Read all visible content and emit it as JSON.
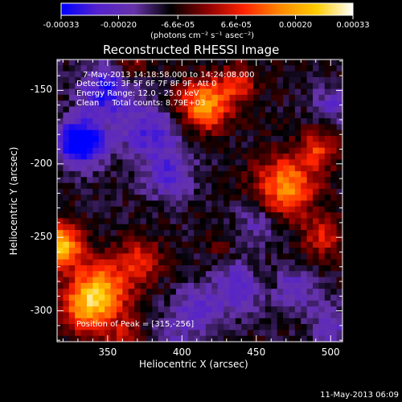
{
  "colorbar": {
    "ticks": [
      "-0.00033",
      "-0.00020",
      "-6.6e-05",
      "6.6e-05",
      "0.00020",
      "0.00033"
    ],
    "tick_values": [
      -0.00033,
      -0.0002,
      -6.6e-05,
      6.6e-05,
      0.0002,
      0.00033
    ],
    "units_label": "(photons cm⁻² s⁻¹ asec⁻²)",
    "colors": [
      "#0000ff",
      "#5522cc",
      "#6633aa",
      "#000000",
      "#8b0000",
      "#ff2200",
      "#ff8800",
      "#ffcc00",
      "#ffffff"
    ]
  },
  "chart_data": {
    "type": "heatmap",
    "title": "Reconstructed RHESSI Image",
    "xlabel": "Heliocentric X (arcsec)",
    "ylabel": "Heliocentric Y (arcsec)",
    "xlim": [
      316,
      508
    ],
    "ylim": [
      -321,
      -129
    ],
    "xticks": [
      "350",
      "400",
      "450",
      "500"
    ],
    "xtick_values": [
      350,
      400,
      450,
      500
    ],
    "yticks": [
      "-150",
      "-200",
      "-250",
      "-300"
    ],
    "ytick_values": [
      -150,
      -200,
      -250,
      -300
    ],
    "zlim": [
      -0.00033,
      0.00033
    ],
    "peak": [
      315,
      -256
    ],
    "sources": [
      {
        "x": 318,
        "y": -256,
        "amp": 0.00033,
        "w": 10
      },
      {
        "x": 345,
        "y": -286,
        "amp": 0.00026,
        "w": 14
      },
      {
        "x": 335,
        "y": -300,
        "amp": 0.00018,
        "w": 12
      },
      {
        "x": 372,
        "y": -266,
        "amp": 0.00016,
        "w": 10
      },
      {
        "x": 362,
        "y": -318,
        "amp": 0.00012,
        "w": 8
      },
      {
        "x": 415,
        "y": -160,
        "amp": 0.00028,
        "w": 12
      },
      {
        "x": 438,
        "y": -145,
        "amp": 0.00014,
        "w": 9
      },
      {
        "x": 470,
        "y": -215,
        "amp": 0.00026,
        "w": 14
      },
      {
        "x": 492,
        "y": -190,
        "amp": 0.00016,
        "w": 9
      },
      {
        "x": 495,
        "y": -250,
        "amp": 0.00014,
        "w": 10
      },
      {
        "x": 365,
        "y": -135,
        "amp": 0.0001,
        "w": 8
      },
      {
        "x": 455,
        "y": -282,
        "amp": 8e-05,
        "w": 8
      },
      {
        "x": 425,
        "y": -255,
        "amp": 5e-05,
        "w": 6
      },
      {
        "x": 332,
        "y": -185,
        "amp": -0.00033,
        "w": 11
      },
      {
        "x": 350,
        "y": -150,
        "amp": -0.00022,
        "w": 12
      },
      {
        "x": 378,
        "y": -178,
        "amp": -0.00016,
        "w": 14
      },
      {
        "x": 392,
        "y": -208,
        "amp": -0.00014,
        "w": 12
      },
      {
        "x": 440,
        "y": -285,
        "amp": -0.00016,
        "w": 12
      },
      {
        "x": 475,
        "y": -285,
        "amp": -0.00014,
        "w": 10
      },
      {
        "x": 410,
        "y": -300,
        "amp": -0.00013,
        "w": 12
      },
      {
        "x": 450,
        "y": -240,
        "amp": -0.0001,
        "w": 10
      },
      {
        "x": 500,
        "y": -160,
        "amp": -0.00012,
        "w": 9
      },
      {
        "x": 500,
        "y": -310,
        "amp": -0.00012,
        "w": 10
      },
      {
        "x": 390,
        "y": -318,
        "amp": -8e-05,
        "w": 10
      }
    ]
  },
  "annotations": {
    "time_range": "7-May-2013 14:18:58.000 to 14:24:08.000",
    "detectors": "Detectors: 3F 5F 6F 7F 8F 9F, Att 0",
    "energy": "Energy Range: 12.0 - 25.0 keV",
    "clean": "Clean     Total counts: 8.79E+03",
    "peak_position": "Position of Peak = [315,-256]"
  },
  "footer_date": "11-May-2013 06:09"
}
